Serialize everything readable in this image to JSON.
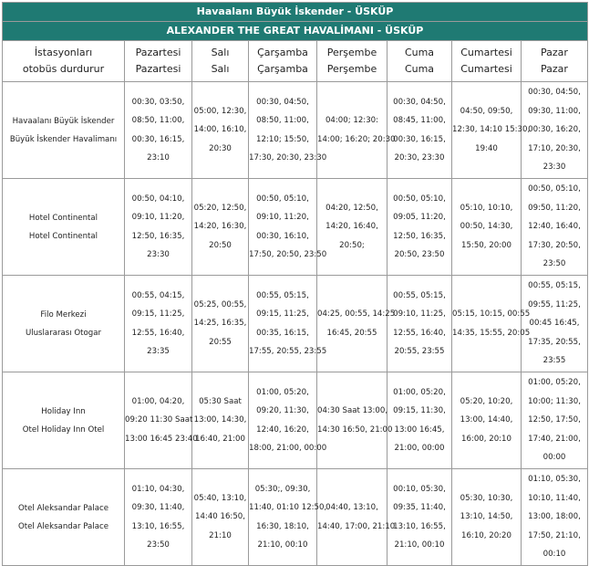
{
  "title_line1": "Havaalanı Büyük İskender - ÜSKÜP",
  "title_line2": "ALEXANDER THE GREAT HAVALİMANI - ÜSKÜP",
  "header": {
    "station": [
      "İstasyonları",
      "otobüs durdurur"
    ],
    "days": [
      [
        "Pazartesi",
        "Pazartesi"
      ],
      [
        "Salı",
        "Salı"
      ],
      [
        "Çarşamba",
        "Çarşamba"
      ],
      [
        "Perşembe",
        "Perşembe"
      ],
      [
        "Cuma",
        "Cuma"
      ],
      [
        "Cumartesi",
        "Cumartesi"
      ],
      [
        "Pazar",
        "Pazar"
      ]
    ]
  },
  "rows": [
    {
      "station": [
        "Havaalanı Büyük İskender",
        "Büyük İskender Havalimanı"
      ],
      "cells": [
        [
          "00:30, 03:50,",
          "08:50, 11:00,",
          "00:30, 16:15,",
          "23:10"
        ],
        [
          "05:00, 12:30,",
          "14:00, 16:10,",
          "20:30"
        ],
        [
          "00:30, 04:50,",
          "08:50, 11:00,",
          "12:10; 15:50,",
          "17:30, 20:30, 23:30"
        ],
        [
          "04:00; 12:30:",
          "14:00; 16:20; 20:30"
        ],
        [
          "00:30, 04:50,",
          "08:45, 11:00,",
          "00:30, 16:15,",
          "20:30, 23:30"
        ],
        [
          "04:50, 09:50,",
          "12:30, 14:10 15:30,",
          "19:40"
        ],
        [
          "00:30, 04:50,",
          "09:30, 11:00,",
          "00:30, 16:20,",
          "17:10, 20:30,",
          "23:30"
        ]
      ]
    },
    {
      "station": [
        "Hotel Continental",
        "Hotel Continental"
      ],
      "cells": [
        [
          "00:50, 04:10,",
          "09:10, 11:20,",
          "12:50, 16:35,",
          "23:30"
        ],
        [
          "05:20, 12:50,",
          "14:20, 16:30,",
          "20:50"
        ],
        [
          "00:50, 05:10,",
          "09:10, 11:20,",
          "00:30, 16:10,",
          "17:50, 20:50, 23:50"
        ],
        [
          "04:20, 12:50,",
          "14:20, 16:40,",
          "20:50;"
        ],
        [
          "00:50, 05:10,",
          "09:05, 11:20,",
          "12:50, 16:35,",
          "20:50, 23:50"
        ],
        [
          "05:10, 10:10,",
          "00:50, 14:30,",
          "15:50, 20:00"
        ],
        [
          "00:50, 05:10,",
          "09:50, 11:20,",
          "12:40, 16:40,",
          "17:30, 20:50,",
          "23:50"
        ]
      ]
    },
    {
      "station": [
        "Filo Merkezi",
        "Uluslararası Otogar"
      ],
      "cells": [
        [
          "00:55, 04:15,",
          "09:15, 11:25,",
          "12:55, 16:40,",
          "23:35"
        ],
        [
          "05:25, 00:55,",
          "14:25, 16:35,",
          "20:55"
        ],
        [
          "00:55, 05:15,",
          "09:15, 11:25,",
          "00:35, 16:15,",
          "17:55, 20:55, 23:55"
        ],
        [
          "04:25, 00:55, 14:25",
          "16:45, 20:55"
        ],
        [
          "00:55, 05:15,",
          "09:10, 11:25,",
          "12:55, 16:40,",
          "20:55, 23:55"
        ],
        [
          "05:15, 10:15, 00:55",
          "14:35, 15:55, 20:05"
        ],
        [
          "00:55, 05:15,",
          "09:55, 11:25,",
          "00:45 16:45,",
          "17:35, 20:55,",
          "23:55"
        ]
      ]
    },
    {
      "station": [
        "Holiday Inn",
        "Otel Holiday Inn Otel"
      ],
      "cells": [
        [
          "01:00, 04:20,",
          "09:20 11:30 Saat",
          "13:00 16:45 23:40"
        ],
        [
          "05:30 Saat",
          "13:00, 14:30,",
          "16:40, 21:00"
        ],
        [
          "01:00, 05:20,",
          "09:20, 11:30,",
          "12:40, 16:20,",
          "18:00, 21:00, 00:00"
        ],
        [
          "04:30 Saat 13:00,",
          "14:30 16:50, 21:00"
        ],
        [
          "01:00, 05:20,",
          "09:15, 11:30,",
          "13:00 16:45,",
          "21:00, 00:00"
        ],
        [
          "05:20, 10:20,",
          "13:00, 14:40,",
          "16:00, 20:10"
        ],
        [
          "01:00, 05:20,",
          "10:00; 11:30,",
          "12:50, 17:50,",
          "17:40, 21:00,",
          "00:00"
        ]
      ]
    },
    {
      "station": [
        "Otel Aleksandar Palace",
        "Otel Aleksandar Palace"
      ],
      "cells": [
        [
          "01:10, 04:30,",
          "09:30, 11:40,",
          "13:10, 16:55,",
          "23:50"
        ],
        [
          "05:40, 13:10,",
          "14:40 16:50,",
          "21:10"
        ],
        [
          "05:30;, 09:30,",
          "11:40, 01:10 12:50,",
          "16:30, 18:10,",
          "21:10, 00:10"
        ],
        [
          "04:40, 13:10,",
          "14:40, 17:00, 21:10"
        ],
        [
          "00:10, 05:30,",
          "09:35, 11:40,",
          "13:10, 16:55,",
          "21:10, 00:10"
        ],
        [
          "05:30, 10:30,",
          "13:10, 14:50,",
          "16:10, 20:20"
        ],
        [
          "01:10, 05:30,",
          "10:10, 11:40,",
          "13:00, 18:00,",
          "17:50, 21:10,",
          "00:10"
        ]
      ]
    }
  ]
}
